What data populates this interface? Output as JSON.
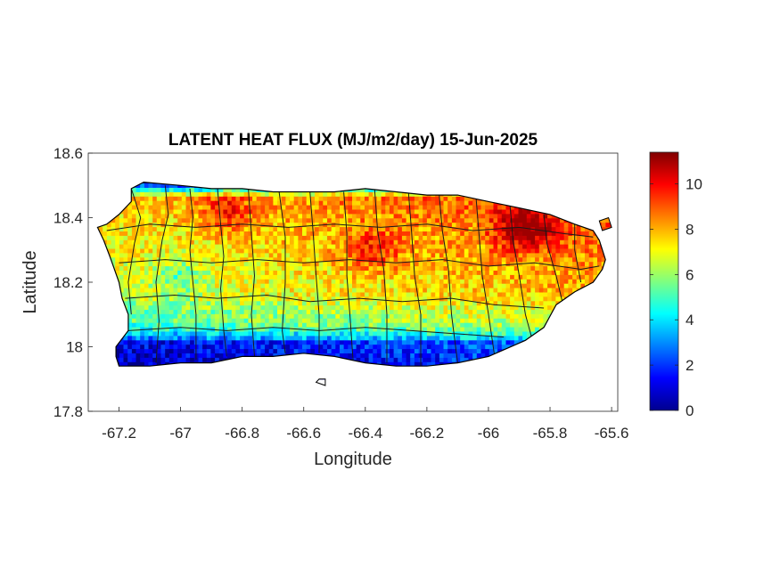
{
  "chart_data": {
    "type": "heatmap",
    "title": "LATENT HEAT FLUX (MJ/m2/day) 15-Jun-2025",
    "xlabel": "Longitude",
    "ylabel": "Latitude",
    "xlim": [
      -67.3,
      -65.58
    ],
    "ylim": [
      17.8,
      18.6
    ],
    "x_ticks": [
      -67.2,
      -67,
      -66.8,
      -66.6,
      -66.4,
      -66.2,
      -66,
      -65.8,
      -65.6
    ],
    "x_tick_labels": [
      "-67.2",
      "-67",
      "-66.8",
      "-66.6",
      "-66.4",
      "-66.2",
      "-66",
      "-65.8",
      "-65.6"
    ],
    "y_ticks": [
      17.8,
      18,
      18.2,
      18.4,
      18.6
    ],
    "y_tick_labels": [
      "17.8",
      "18",
      "18.2",
      "18.4",
      "18.6"
    ],
    "grid": false,
    "colorbar": {
      "colormap": "jet",
      "range": [
        0,
        11.4
      ],
      "ticks": [
        0,
        2,
        4,
        6,
        8,
        10
      ],
      "tick_labels": [
        "0",
        "2",
        "4",
        "6",
        "8",
        "10"
      ],
      "location": "right"
    },
    "island_outline": [
      [
        -67.27,
        18.37
      ],
      [
        -67.24,
        18.38
      ],
      [
        -67.2,
        18.41
      ],
      [
        -67.16,
        18.45
      ],
      [
        -67.16,
        18.49
      ],
      [
        -67.12,
        18.51
      ],
      [
        -67.0,
        18.5
      ],
      [
        -66.9,
        18.49
      ],
      [
        -66.8,
        18.49
      ],
      [
        -66.7,
        18.48
      ],
      [
        -66.6,
        18.48
      ],
      [
        -66.5,
        18.48
      ],
      [
        -66.4,
        18.49
      ],
      [
        -66.3,
        18.48
      ],
      [
        -66.2,
        18.47
      ],
      [
        -66.1,
        18.47
      ],
      [
        -66.0,
        18.45
      ],
      [
        -65.9,
        18.43
      ],
      [
        -65.8,
        18.41
      ],
      [
        -65.72,
        18.38
      ],
      [
        -65.66,
        18.36
      ],
      [
        -65.64,
        18.33
      ],
      [
        -65.62,
        18.27
      ],
      [
        -65.63,
        18.24
      ],
      [
        -65.66,
        18.2
      ],
      [
        -65.72,
        18.17
      ],
      [
        -65.78,
        18.13
      ],
      [
        -65.82,
        18.06
      ],
      [
        -65.88,
        18.02
      ],
      [
        -66.0,
        17.97
      ],
      [
        -66.1,
        17.95
      ],
      [
        -66.2,
        17.94
      ],
      [
        -66.3,
        17.94
      ],
      [
        -66.4,
        17.95
      ],
      [
        -66.5,
        17.97
      ],
      [
        -66.6,
        17.98
      ],
      [
        -66.7,
        17.97
      ],
      [
        -66.8,
        17.97
      ],
      [
        -66.9,
        17.95
      ],
      [
        -67.0,
        17.95
      ],
      [
        -67.1,
        17.94
      ],
      [
        -67.2,
        17.94
      ],
      [
        -67.21,
        17.97
      ],
      [
        -67.21,
        18.0
      ],
      [
        -67.17,
        18.05
      ],
      [
        -67.17,
        18.1
      ],
      [
        -67.19,
        18.15
      ],
      [
        -67.2,
        18.2
      ],
      [
        -67.23,
        18.28
      ],
      [
        -67.25,
        18.33
      ],
      [
        -67.27,
        18.37
      ]
    ],
    "offshore_islets": [
      [
        [
          -65.64,
          18.39
        ],
        [
          -65.61,
          18.4
        ],
        [
          -65.6,
          18.37
        ],
        [
          -65.63,
          18.36
        ]
      ],
      [
        [
          -66.55,
          17.9
        ],
        [
          -66.53,
          17.9
        ],
        [
          -66.53,
          17.88
        ],
        [
          -66.56,
          17.89
        ]
      ]
    ],
    "municipal_boundaries": [
      [
        [
          -67.16,
          18.49
        ],
        [
          -67.13,
          18.4
        ],
        [
          -67.15,
          18.32
        ],
        [
          -67.17,
          18.2
        ],
        [
          -67.16,
          18.1
        ]
      ],
      [
        [
          -67.05,
          18.5
        ],
        [
          -67.04,
          18.41
        ],
        [
          -67.06,
          18.33
        ],
        [
          -67.08,
          18.2
        ],
        [
          -67.07,
          18.08
        ],
        [
          -67.08,
          17.95
        ]
      ],
      [
        [
          -66.97,
          18.49
        ],
        [
          -66.96,
          18.4
        ],
        [
          -66.97,
          18.3
        ],
        [
          -66.96,
          18.2
        ],
        [
          -66.95,
          18.1
        ],
        [
          -66.95,
          17.96
        ]
      ],
      [
        [
          -66.88,
          18.49
        ],
        [
          -66.87,
          18.38
        ],
        [
          -66.86,
          18.28
        ],
        [
          -66.87,
          18.18
        ],
        [
          -66.86,
          18.05
        ],
        [
          -66.85,
          17.97
        ]
      ],
      [
        [
          -66.78,
          18.49
        ],
        [
          -66.77,
          18.35
        ],
        [
          -66.76,
          18.22
        ],
        [
          -66.77,
          18.1
        ],
        [
          -66.76,
          17.97
        ]
      ],
      [
        [
          -66.68,
          18.48
        ],
        [
          -66.66,
          18.34
        ],
        [
          -66.66,
          18.2
        ],
        [
          -66.67,
          18.05
        ],
        [
          -66.66,
          17.98
        ]
      ],
      [
        [
          -66.58,
          18.48
        ],
        [
          -66.57,
          18.36
        ],
        [
          -66.56,
          18.22
        ],
        [
          -66.55,
          18.1
        ],
        [
          -66.55,
          17.98
        ]
      ],
      [
        [
          -66.47,
          18.48
        ],
        [
          -66.46,
          18.35
        ],
        [
          -66.46,
          18.22
        ],
        [
          -66.45,
          18.1
        ],
        [
          -66.44,
          17.96
        ]
      ],
      [
        [
          -66.37,
          18.49
        ],
        [
          -66.36,
          18.36
        ],
        [
          -66.34,
          18.24
        ],
        [
          -66.33,
          18.1
        ],
        [
          -66.33,
          17.95
        ]
      ],
      [
        [
          -66.26,
          18.48
        ],
        [
          -66.25,
          18.36
        ],
        [
          -66.24,
          18.22
        ],
        [
          -66.22,
          18.1
        ],
        [
          -66.22,
          17.94
        ]
      ],
      [
        [
          -66.16,
          18.47
        ],
        [
          -66.15,
          18.36
        ],
        [
          -66.13,
          18.24
        ],
        [
          -66.12,
          18.1
        ],
        [
          -66.1,
          17.95
        ]
      ],
      [
        [
          -66.04,
          18.46
        ],
        [
          -66.03,
          18.34
        ],
        [
          -66.02,
          18.22
        ],
        [
          -66.0,
          18.1
        ],
        [
          -65.98,
          17.97
        ]
      ],
      [
        [
          -65.93,
          18.44
        ],
        [
          -65.92,
          18.33
        ],
        [
          -65.9,
          18.22
        ],
        [
          -65.88,
          18.1
        ],
        [
          -65.86,
          18.03
        ]
      ],
      [
        [
          -65.82,
          18.41
        ],
        [
          -65.81,
          18.32
        ],
        [
          -65.78,
          18.22
        ],
        [
          -65.76,
          18.14
        ]
      ],
      [
        [
          -65.72,
          18.38
        ],
        [
          -65.72,
          18.3
        ],
        [
          -65.7,
          18.2
        ]
      ],
      [
        [
          -67.24,
          18.36
        ],
        [
          -67.1,
          18.38
        ],
        [
          -66.95,
          18.37
        ],
        [
          -66.8,
          18.38
        ],
        [
          -66.65,
          18.37
        ],
        [
          -66.5,
          18.38
        ],
        [
          -66.35,
          18.37
        ],
        [
          -66.2,
          18.38
        ],
        [
          -66.05,
          18.36
        ],
        [
          -65.9,
          18.37
        ],
        [
          -65.75,
          18.35
        ],
        [
          -65.66,
          18.34
        ]
      ],
      [
        [
          -67.2,
          18.26
        ],
        [
          -67.05,
          18.27
        ],
        [
          -66.9,
          18.26
        ],
        [
          -66.75,
          18.27
        ],
        [
          -66.6,
          18.26
        ],
        [
          -66.45,
          18.27
        ],
        [
          -66.3,
          18.26
        ],
        [
          -66.15,
          18.27
        ],
        [
          -66.0,
          18.25
        ],
        [
          -65.85,
          18.26
        ],
        [
          -65.7,
          18.24
        ],
        [
          -65.64,
          18.25
        ]
      ],
      [
        [
          -67.18,
          18.15
        ],
        [
          -67.02,
          18.16
        ],
        [
          -66.88,
          18.15
        ],
        [
          -66.72,
          18.16
        ],
        [
          -66.58,
          18.14
        ],
        [
          -66.42,
          18.15
        ],
        [
          -66.28,
          18.14
        ],
        [
          -66.12,
          18.15
        ],
        [
          -65.98,
          18.13
        ],
        [
          -65.82,
          18.12
        ]
      ],
      [
        [
          -67.17,
          18.05
        ],
        [
          -67.0,
          18.06
        ],
        [
          -66.85,
          18.05
        ],
        [
          -66.7,
          18.06
        ],
        [
          -66.55,
          18.05
        ],
        [
          -66.4,
          18.06
        ],
        [
          -66.25,
          18.05
        ],
        [
          -66.1,
          18.04
        ],
        [
          -65.95,
          18.03
        ]
      ]
    ]
  }
}
